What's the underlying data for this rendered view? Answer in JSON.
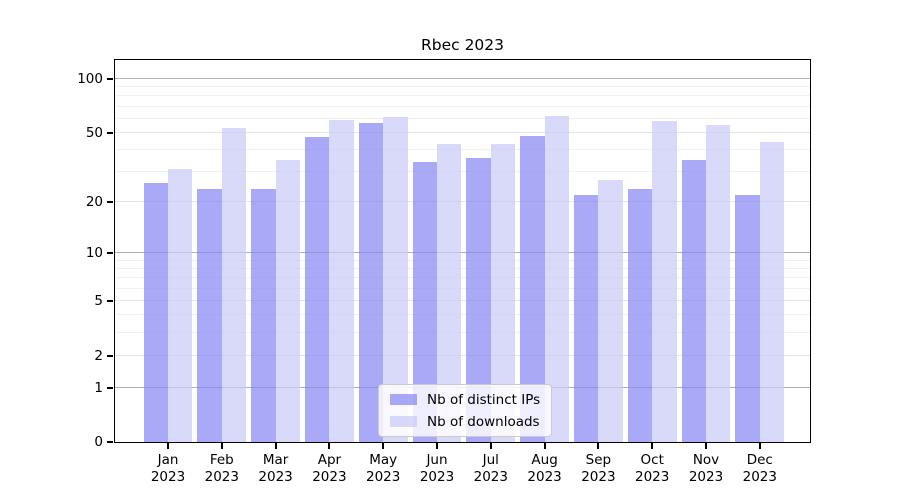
{
  "figure": {
    "background": "#ffffff"
  },
  "chart_data": {
    "type": "bar",
    "title": "Rbec 2023",
    "categories": [
      "Jan 2023",
      "Feb 2023",
      "Mar 2023",
      "Apr 2023",
      "May 2023",
      "Jun 2023",
      "Jul 2023",
      "Aug 2023",
      "Sep 2023",
      "Oct 2023",
      "Nov 2023",
      "Dec 2023"
    ],
    "x_tick_line1": [
      "Jan",
      "Feb",
      "Mar",
      "Apr",
      "May",
      "Jun",
      "Jul",
      "Aug",
      "Sep",
      "Oct",
      "Nov",
      "Dec"
    ],
    "x_tick_line2": "2023",
    "series": [
      {
        "name": "Nb of distinct IPs",
        "color": "rgba(132,132,244,0.7)",
        "color_over_white": "#a9a9f7",
        "values": [
          26,
          24,
          24,
          47,
          57,
          34,
          36,
          48,
          22,
          24,
          35,
          22
        ]
      },
      {
        "name": "Nb of downloads",
        "color": "rgba(201,201,248,0.7)",
        "color_over_white": "#d9d9fa",
        "values": [
          31,
          53,
          35,
          59,
          61,
          43,
          43,
          62,
          27,
          58,
          55,
          44
        ]
      }
    ],
    "xlabel": "",
    "ylabel": "",
    "y_scale": "log1p",
    "ylim": [
      0,
      127.3
    ],
    "y_ticks": [
      0,
      1,
      2,
      5,
      10,
      20,
      50,
      100
    ],
    "y_minor_ticks": [
      3,
      4,
      6,
      7,
      8,
      9,
      30,
      40,
      60,
      70,
      80,
      90
    ],
    "grid": true,
    "legend": {
      "position": "lower center",
      "items": [
        "Nb of distinct IPs",
        "Nb of downloads"
      ]
    },
    "colors": {
      "grid_decade_line": "#b0b0b0",
      "grid_sub_line": "#e6e6e6",
      "grid_minor_line": "#f0f0f0",
      "axis_line": "#000000",
      "text": "#000000"
    }
  }
}
